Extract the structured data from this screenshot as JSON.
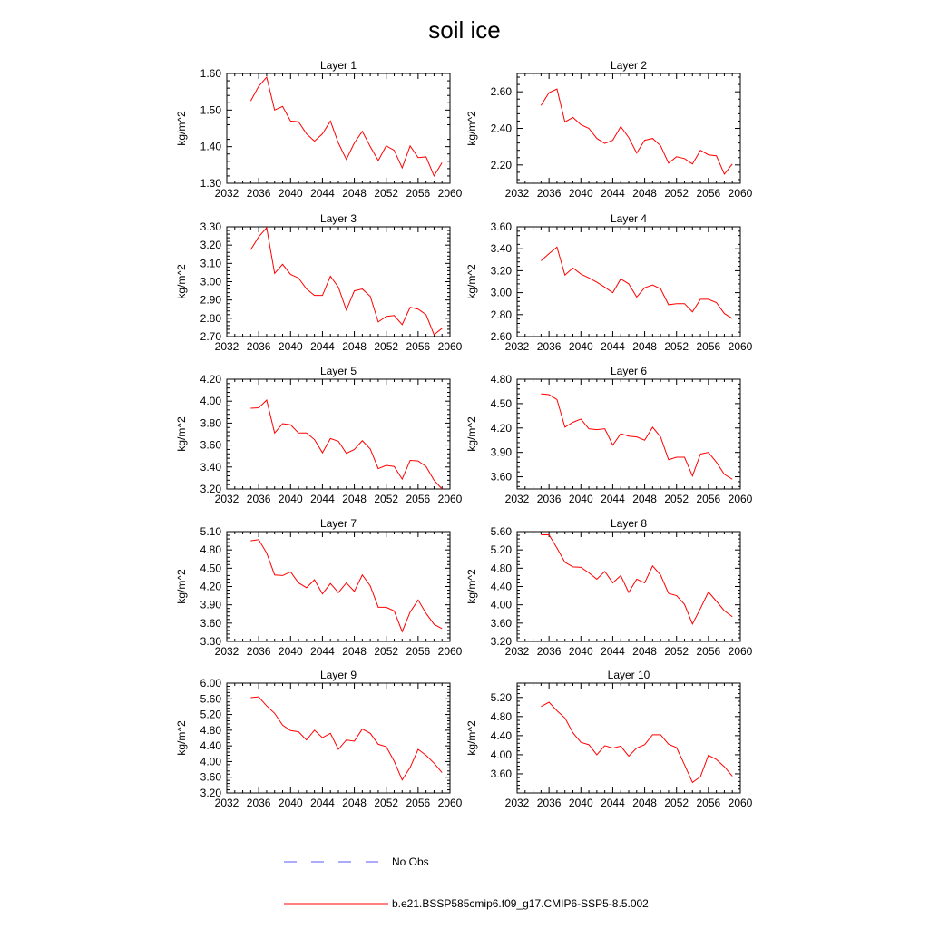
{
  "title": "soil ice",
  "legend": {
    "obs_label": "No Obs",
    "model_label": "b.e21.BSSP585cmip6.f09_g17.CMIP6-SSP5-8.5.002",
    "obs_color": "#5a5aff",
    "model_color": "#ff0000"
  },
  "colors": {
    "series": "#ff0000",
    "axes": "#000000",
    "background": "#ffffff"
  },
  "chart_data": [
    {
      "type": "line",
      "title": "Layer 1",
      "ylabel": "kg/m^2",
      "xlim": [
        2032,
        2060
      ],
      "ylim": [
        1.3,
        1.6
      ],
      "xticks": [
        "2032",
        "2036",
        "2040",
        "2044",
        "2048",
        "2052",
        "2056",
        "2060"
      ],
      "yticks": [
        "1.30",
        "1.40",
        "1.50",
        "1.60"
      ],
      "series": [
        {
          "x": [
            2035,
            2036,
            2037,
            2038,
            2039,
            2040,
            2041,
            2042,
            2043,
            2044,
            2045,
            2046,
            2047,
            2048,
            2049,
            2050,
            2051,
            2052,
            2053,
            2054,
            2055,
            2056,
            2057,
            2058,
            2059
          ],
          "values": [
            1.525,
            1.565,
            1.59,
            1.5,
            1.51,
            1.47,
            1.468,
            1.435,
            1.415,
            1.435,
            1.47,
            1.41,
            1.365,
            1.41,
            1.442,
            1.4,
            1.362,
            1.402,
            1.39,
            1.342,
            1.402,
            1.37,
            1.372,
            1.32,
            1.356
          ]
        }
      ]
    },
    {
      "type": "line",
      "title": "Layer 2",
      "ylabel": "kg/m^2",
      "xlim": [
        2032,
        2060
      ],
      "ylim": [
        2.1,
        2.7
      ],
      "xticks": [
        "2032",
        "2036",
        "2040",
        "2044",
        "2048",
        "2052",
        "2056",
        "2060"
      ],
      "yticks": [
        "2.20",
        "2.40",
        "2.60"
      ],
      "series": [
        {
          "x": [
            2035,
            2036,
            2037,
            2038,
            2039,
            2040,
            2041,
            2042,
            2043,
            2044,
            2045,
            2046,
            2047,
            2048,
            2049,
            2050,
            2051,
            2052,
            2053,
            2054,
            2055,
            2056,
            2057,
            2058,
            2059
          ],
          "values": [
            2.525,
            2.595,
            2.615,
            2.435,
            2.46,
            2.42,
            2.4,
            2.345,
            2.318,
            2.335,
            2.41,
            2.35,
            2.265,
            2.335,
            2.345,
            2.305,
            2.21,
            2.245,
            2.235,
            2.205,
            2.28,
            2.255,
            2.25,
            2.15,
            2.205
          ]
        }
      ]
    },
    {
      "type": "line",
      "title": "Layer 3",
      "ylabel": "kg/m^2",
      "xlim": [
        2032,
        2060
      ],
      "ylim": [
        2.7,
        3.3
      ],
      "xticks": [
        "2032",
        "2036",
        "2040",
        "2044",
        "2048",
        "2052",
        "2056",
        "2060"
      ],
      "yticks": [
        "2.70",
        "2.80",
        "2.90",
        "3.00",
        "3.10",
        "3.20",
        "3.30"
      ],
      "series": [
        {
          "x": [
            2035,
            2036,
            2037,
            2038,
            2039,
            2040,
            2041,
            2042,
            2043,
            2044,
            2045,
            2046,
            2047,
            2048,
            2049,
            2050,
            2051,
            2052,
            2053,
            2054,
            2055,
            2056,
            2057,
            2058,
            2059
          ],
          "values": [
            3.175,
            3.245,
            3.295,
            3.045,
            3.095,
            3.04,
            3.02,
            2.96,
            2.925,
            2.925,
            3.03,
            2.97,
            2.845,
            2.95,
            2.96,
            2.92,
            2.78,
            2.81,
            2.815,
            2.765,
            2.86,
            2.85,
            2.82,
            2.71,
            2.745
          ]
        }
      ]
    },
    {
      "type": "line",
      "title": "Layer 4",
      "ylabel": "kg/m^2",
      "xlim": [
        2032,
        2060
      ],
      "ylim": [
        2.6,
        3.6
      ],
      "xticks": [
        "2032",
        "2036",
        "2040",
        "2044",
        "2048",
        "2052",
        "2056",
        "2060"
      ],
      "yticks": [
        "2.60",
        "2.80",
        "3.00",
        "3.20",
        "3.40",
        "3.60"
      ],
      "series": [
        {
          "x": [
            2035,
            2036,
            2037,
            2038,
            2039,
            2040,
            2041,
            2042,
            2043,
            2044,
            2045,
            2046,
            2047,
            2048,
            2049,
            2050,
            2051,
            2052,
            2053,
            2054,
            2055,
            2056,
            2057,
            2058,
            2059
          ],
          "values": [
            3.29,
            3.355,
            3.415,
            3.16,
            3.225,
            3.17,
            3.135,
            3.095,
            3.05,
            3.0,
            3.125,
            3.08,
            2.96,
            3.045,
            3.07,
            3.035,
            2.89,
            2.9,
            2.9,
            2.825,
            2.94,
            2.94,
            2.91,
            2.81,
            2.765
          ]
        }
      ]
    },
    {
      "type": "line",
      "title": "Layer 5",
      "ylabel": "kg/m^2",
      "xlim": [
        2032,
        2060
      ],
      "ylim": [
        3.2,
        4.2
      ],
      "xticks": [
        "2032",
        "2036",
        "2040",
        "2044",
        "2048",
        "2052",
        "2056",
        "2060"
      ],
      "yticks": [
        "3.20",
        "3.40",
        "3.60",
        "3.80",
        "4.00",
        "4.20"
      ],
      "series": [
        {
          "x": [
            2035,
            2036,
            2037,
            2038,
            2039,
            2040,
            2041,
            2042,
            2043,
            2044,
            2045,
            2046,
            2047,
            2048,
            2049,
            2050,
            2051,
            2052,
            2053,
            2054,
            2055,
            2056,
            2057,
            2058,
            2059
          ],
          "values": [
            3.935,
            3.94,
            4.01,
            3.71,
            3.795,
            3.785,
            3.71,
            3.71,
            3.65,
            3.53,
            3.66,
            3.635,
            3.525,
            3.56,
            3.64,
            3.565,
            3.385,
            3.415,
            3.405,
            3.29,
            3.46,
            3.455,
            3.405,
            3.28,
            3.2
          ]
        }
      ]
    },
    {
      "type": "line",
      "title": "Layer 6",
      "ylabel": "kg/m^2",
      "xlim": [
        2032,
        2060
      ],
      "ylim": [
        3.45,
        4.8
      ],
      "xticks": [
        "2032",
        "2036",
        "2040",
        "2044",
        "2048",
        "2052",
        "2056",
        "2060"
      ],
      "yticks": [
        "3.60",
        "3.90",
        "4.20",
        "4.50",
        "4.80"
      ],
      "series": [
        {
          "x": [
            2035,
            2036,
            2037,
            2038,
            2039,
            2040,
            2041,
            2042,
            2043,
            2044,
            2045,
            2046,
            2047,
            2048,
            2049,
            2050,
            2051,
            2052,
            2053,
            2054,
            2055,
            2056,
            2057,
            2058,
            2059
          ],
          "values": [
            4.62,
            4.61,
            4.55,
            4.21,
            4.27,
            4.31,
            4.19,
            4.18,
            4.19,
            3.99,
            4.13,
            4.1,
            4.09,
            4.05,
            4.21,
            4.09,
            3.81,
            3.84,
            3.84,
            3.61,
            3.88,
            3.9,
            3.78,
            3.63,
            3.57
          ]
        }
      ]
    },
    {
      "type": "line",
      "title": "Layer 7",
      "ylabel": "kg/m^2",
      "xlim": [
        2032,
        2060
      ],
      "ylim": [
        3.3,
        5.1
      ],
      "xticks": [
        "2032",
        "2036",
        "2040",
        "2044",
        "2048",
        "2052",
        "2056",
        "2060"
      ],
      "yticks": [
        "3.30",
        "3.60",
        "3.90",
        "4.20",
        "4.50",
        "4.80",
        "5.10"
      ],
      "series": [
        {
          "x": [
            2035,
            2036,
            2037,
            2038,
            2039,
            2040,
            2041,
            2042,
            2043,
            2044,
            2045,
            2046,
            2047,
            2048,
            2049,
            2050,
            2051,
            2052,
            2053,
            2054,
            2055,
            2056,
            2057,
            2058,
            2059
          ],
          "values": [
            4.95,
            4.97,
            4.75,
            4.39,
            4.38,
            4.44,
            4.26,
            4.18,
            4.31,
            4.08,
            4.25,
            4.1,
            4.26,
            4.12,
            4.39,
            4.21,
            3.86,
            3.86,
            3.8,
            3.46,
            3.78,
            3.98,
            3.76,
            3.58,
            3.51
          ]
        }
      ]
    },
    {
      "type": "line",
      "title": "Layer 8",
      "ylabel": "kg/m^2",
      "xlim": [
        2032,
        2060
      ],
      "ylim": [
        3.2,
        5.6
      ],
      "xticks": [
        "2032",
        "2036",
        "2040",
        "2044",
        "2048",
        "2052",
        "2056",
        "2060"
      ],
      "yticks": [
        "3.20",
        "3.60",
        "4.00",
        "4.40",
        "4.80",
        "5.20",
        "5.60"
      ],
      "series": [
        {
          "x": [
            2035,
            2036,
            2037,
            2038,
            2039,
            2040,
            2041,
            2042,
            2043,
            2044,
            2045,
            2046,
            2047,
            2048,
            2049,
            2050,
            2051,
            2052,
            2053,
            2054,
            2055,
            2056,
            2057,
            2058,
            2059
          ],
          "values": [
            5.53,
            5.53,
            5.24,
            4.93,
            4.83,
            4.82,
            4.7,
            4.56,
            4.73,
            4.48,
            4.64,
            4.27,
            4.56,
            4.48,
            4.85,
            4.65,
            4.25,
            4.2,
            4.01,
            3.58,
            3.92,
            4.28,
            4.08,
            3.87,
            3.74
          ]
        }
      ]
    },
    {
      "type": "line",
      "title": "Layer 9",
      "ylabel": "kg/m^2",
      "xlim": [
        2032,
        2060
      ],
      "ylim": [
        3.2,
        6.0
      ],
      "xticks": [
        "2032",
        "2036",
        "2040",
        "2044",
        "2048",
        "2052",
        "2056",
        "2060"
      ],
      "yticks": [
        "3.20",
        "3.60",
        "4.00",
        "4.40",
        "4.80",
        "5.20",
        "5.60",
        "6.00"
      ],
      "series": [
        {
          "x": [
            2035,
            2036,
            2037,
            2038,
            2039,
            2040,
            2041,
            2042,
            2043,
            2044,
            2045,
            2046,
            2047,
            2048,
            2049,
            2050,
            2051,
            2052,
            2053,
            2054,
            2055,
            2056,
            2057,
            2058,
            2059
          ],
          "values": [
            5.63,
            5.65,
            5.42,
            5.23,
            4.93,
            4.79,
            4.76,
            4.55,
            4.8,
            4.61,
            4.72,
            4.31,
            4.55,
            4.52,
            4.83,
            4.72,
            4.44,
            4.38,
            4.01,
            3.53,
            3.85,
            4.31,
            4.16,
            3.96,
            3.72
          ]
        }
      ]
    },
    {
      "type": "line",
      "title": "Layer 10",
      "ylabel": "kg/m^2",
      "xlim": [
        2032,
        2060
      ],
      "ylim": [
        3.2,
        5.5
      ],
      "xticks": [
        "2032",
        "2036",
        "2040",
        "2044",
        "2048",
        "2052",
        "2056",
        "2060"
      ],
      "yticks": [
        "3.60",
        "4.00",
        "4.40",
        "4.80",
        "5.20"
      ],
      "series": [
        {
          "x": [
            2035,
            2036,
            2037,
            2038,
            2039,
            2040,
            2041,
            2042,
            2043,
            2044,
            2045,
            2046,
            2047,
            2048,
            2049,
            2050,
            2051,
            2052,
            2053,
            2054,
            2055,
            2056,
            2057,
            2058,
            2059
          ],
          "values": [
            5.01,
            5.1,
            4.92,
            4.77,
            4.46,
            4.26,
            4.21,
            4.0,
            4.19,
            4.14,
            4.18,
            3.97,
            4.14,
            4.21,
            4.42,
            4.42,
            4.22,
            4.15,
            3.79,
            3.42,
            3.54,
            3.99,
            3.9,
            3.75,
            3.55
          ]
        }
      ]
    }
  ]
}
